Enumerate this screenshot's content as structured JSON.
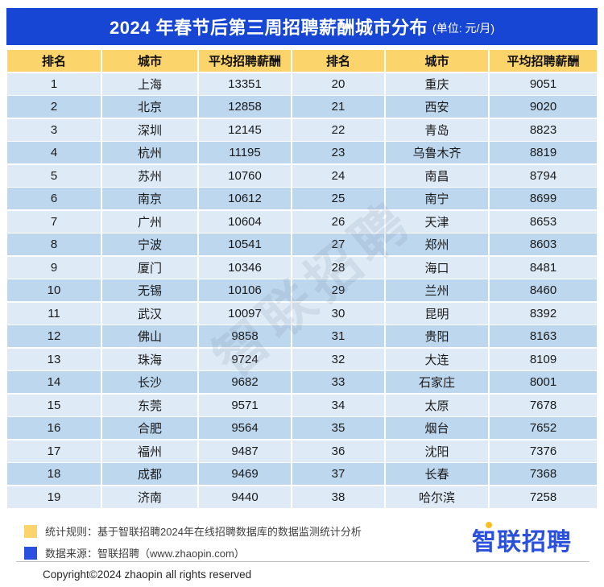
{
  "title": {
    "main": "2024 年春节后第三周招聘薪酬城市分布",
    "unit": "(单位: 元/月)"
  },
  "table": {
    "headers": [
      "排名",
      "城市",
      "平均招聘薪酬",
      "排名",
      "城市",
      "平均招聘薪酬"
    ],
    "left_rows": [
      {
        "rank": "1",
        "city": "上海",
        "salary": "13351"
      },
      {
        "rank": "2",
        "city": "北京",
        "salary": "12858"
      },
      {
        "rank": "3",
        "city": "深圳",
        "salary": "12145"
      },
      {
        "rank": "4",
        "city": "杭州",
        "salary": "11195"
      },
      {
        "rank": "5",
        "city": "苏州",
        "salary": "10760"
      },
      {
        "rank": "6",
        "city": "南京",
        "salary": "10612"
      },
      {
        "rank": "7",
        "city": "广州",
        "salary": "10604"
      },
      {
        "rank": "8",
        "city": "宁波",
        "salary": "10541"
      },
      {
        "rank": "9",
        "city": "厦门",
        "salary": "10346"
      },
      {
        "rank": "10",
        "city": "无锡",
        "salary": "10106"
      },
      {
        "rank": "11",
        "city": "武汉",
        "salary": "10097"
      },
      {
        "rank": "12",
        "city": "佛山",
        "salary": "9858"
      },
      {
        "rank": "13",
        "city": "珠海",
        "salary": "9724"
      },
      {
        "rank": "14",
        "city": "长沙",
        "salary": "9682"
      },
      {
        "rank": "15",
        "city": "东莞",
        "salary": "9571"
      },
      {
        "rank": "16",
        "city": "合肥",
        "salary": "9564"
      },
      {
        "rank": "17",
        "city": "福州",
        "salary": "9487"
      },
      {
        "rank": "18",
        "city": "成都",
        "salary": "9469"
      },
      {
        "rank": "19",
        "city": "济南",
        "salary": "9440"
      }
    ],
    "right_rows": [
      {
        "rank": "20",
        "city": "重庆",
        "salary": "9051"
      },
      {
        "rank": "21",
        "city": "西安",
        "salary": "9020"
      },
      {
        "rank": "22",
        "city": "青岛",
        "salary": "8823"
      },
      {
        "rank": "23",
        "city": "乌鲁木齐",
        "salary": "8819"
      },
      {
        "rank": "24",
        "city": "南昌",
        "salary": "8794"
      },
      {
        "rank": "25",
        "city": "南宁",
        "salary": "8699"
      },
      {
        "rank": "26",
        "city": "天津",
        "salary": "8653"
      },
      {
        "rank": "27",
        "city": "郑州",
        "salary": "8603"
      },
      {
        "rank": "28",
        "city": "海口",
        "salary": "8481"
      },
      {
        "rank": "29",
        "city": "兰州",
        "salary": "8460"
      },
      {
        "rank": "30",
        "city": "昆明",
        "salary": "8392"
      },
      {
        "rank": "31",
        "city": "贵阳",
        "salary": "8163"
      },
      {
        "rank": "32",
        "city": "大连",
        "salary": "8109"
      },
      {
        "rank": "33",
        "city": "石家庄",
        "salary": "8001"
      },
      {
        "rank": "34",
        "city": "太原",
        "salary": "7678"
      },
      {
        "rank": "35",
        "city": "烟台",
        "salary": "7652"
      },
      {
        "rank": "36",
        "city": "沈阳",
        "salary": "7376"
      },
      {
        "rank": "37",
        "city": "长春",
        "salary": "7368"
      },
      {
        "rank": "38",
        "city": "哈尔滨",
        "salary": "7258"
      }
    ]
  },
  "watermark": "智联招聘",
  "footer": {
    "legend": [
      {
        "color": "#FBD56B",
        "text": "统计规则：基于智联招聘2024年在线招聘数据库的数据监测统计分析"
      },
      {
        "color": "#2B50E0",
        "text": "数据来源：智联招聘（www.zhaopin.com）"
      }
    ],
    "logo_text_first": "智",
    "logo_text_rest": "联招聘",
    "copyright": "Copyright©2024 zhaopin all rights reserved"
  },
  "colors": {
    "title_bg": "#1746D4",
    "header_bg": "#FBD56B",
    "row_light": "#DEEBF7",
    "row_dark": "#BDD7EE",
    "legend_blue": "#2B50E0",
    "logo_blue": "#2B50DC",
    "accent_yellow": "#FFBF1E"
  }
}
